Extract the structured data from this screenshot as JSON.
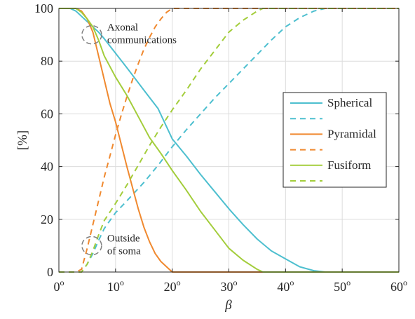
{
  "chart_data": {
    "type": "line",
    "title": "",
    "xlabel": "β",
    "ylabel": "[%]",
    "xlim": [
      0,
      60
    ],
    "ylim": [
      0,
      100
    ],
    "grid": true,
    "legend_position": "right",
    "x_ticks": [
      {
        "value": 0,
        "base": "0",
        "sup": "o"
      },
      {
        "value": 10,
        "base": "10",
        "sup": "o"
      },
      {
        "value": 20,
        "base": "20",
        "sup": "o"
      },
      {
        "value": 30,
        "base": "30",
        "sup": "o"
      },
      {
        "value": 40,
        "base": "40",
        "sup": "o"
      },
      {
        "value": 50,
        "base": "50",
        "sup": "o"
      },
      {
        "value": 60,
        "base": "60",
        "sup": "o"
      }
    ],
    "y_ticks": [
      {
        "value": 0,
        "label": "0"
      },
      {
        "value": 20,
        "label": "20"
      },
      {
        "value": 40,
        "label": "40"
      },
      {
        "value": 60,
        "label": "60"
      },
      {
        "value": 80,
        "label": "80"
      },
      {
        "value": 100,
        "label": "100"
      }
    ],
    "series": [
      {
        "name": "Spherical",
        "color": "#4dbfcf",
        "style": "solid",
        "points": [
          [
            0,
            100
          ],
          [
            2,
            100
          ],
          [
            3,
            99
          ],
          [
            4,
            97
          ],
          [
            5,
            95
          ],
          [
            6,
            93
          ],
          [
            7,
            91
          ],
          [
            8,
            88.5
          ],
          [
            10,
            83
          ],
          [
            12,
            77.5
          ],
          [
            15,
            69
          ],
          [
            17.5,
            62
          ],
          [
            20,
            50.5
          ],
          [
            22.5,
            44
          ],
          [
            25,
            37
          ],
          [
            27.5,
            30.5
          ],
          [
            30,
            24
          ],
          [
            32.5,
            18
          ],
          [
            35,
            12.5
          ],
          [
            37.5,
            8
          ],
          [
            40,
            5
          ],
          [
            42.5,
            2
          ],
          [
            45,
            0.5
          ],
          [
            47,
            0
          ],
          [
            60,
            0
          ]
        ]
      },
      {
        "name": "",
        "color": "#4dbfcf",
        "style": "dashed",
        "points": [
          [
            0,
            0
          ],
          [
            4,
            0
          ],
          [
            5,
            3
          ],
          [
            6,
            7
          ],
          [
            7,
            12
          ],
          [
            8,
            16.5
          ],
          [
            10,
            22.5
          ],
          [
            12,
            27
          ],
          [
            15,
            34
          ],
          [
            17.5,
            40.5
          ],
          [
            20,
            47.5
          ],
          [
            22.5,
            54
          ],
          [
            25,
            60
          ],
          [
            27.5,
            66
          ],
          [
            30,
            71.5
          ],
          [
            32.5,
            77
          ],
          [
            35,
            82.5
          ],
          [
            37.5,
            88
          ],
          [
            40,
            93
          ],
          [
            42.5,
            96.5
          ],
          [
            45,
            99
          ],
          [
            47,
            100
          ],
          [
            60,
            100
          ]
        ]
      },
      {
        "name": "Pyramidal",
        "color": "#f0892f",
        "style": "solid",
        "points": [
          [
            0,
            100
          ],
          [
            3,
            100
          ],
          [
            4,
            99
          ],
          [
            5,
            96
          ],
          [
            6,
            91
          ],
          [
            7,
            82
          ],
          [
            8,
            73
          ],
          [
            9,
            64
          ],
          [
            10,
            57
          ],
          [
            11,
            48.5
          ],
          [
            12,
            40
          ],
          [
            13,
            32
          ],
          [
            14,
            24
          ],
          [
            15,
            17
          ],
          [
            16,
            11.5
          ],
          [
            17,
            7
          ],
          [
            18,
            4
          ],
          [
            19,
            2
          ],
          [
            20,
            0
          ],
          [
            60,
            0
          ]
        ]
      },
      {
        "name": "",
        "color": "#f0892f",
        "style": "dashed",
        "points": [
          [
            0,
            0
          ],
          [
            3,
            0
          ],
          [
            4,
            1
          ],
          [
            5,
            9
          ],
          [
            6,
            18
          ],
          [
            7,
            27
          ],
          [
            8,
            36
          ],
          [
            9,
            44
          ],
          [
            10,
            52
          ],
          [
            11,
            59.5
          ],
          [
            12,
            66.5
          ],
          [
            13,
            73
          ],
          [
            14,
            79
          ],
          [
            15,
            84.5
          ],
          [
            16,
            89
          ],
          [
            17,
            93
          ],
          [
            18,
            96
          ],
          [
            19,
            98.5
          ],
          [
            20,
            100
          ],
          [
            60,
            100
          ]
        ]
      },
      {
        "name": "Fusiform",
        "color": "#a3cd3b",
        "style": "solid",
        "points": [
          [
            0,
            100
          ],
          [
            3,
            100
          ],
          [
            4,
            98.5
          ],
          [
            5,
            96
          ],
          [
            6,
            93
          ],
          [
            7,
            88
          ],
          [
            8,
            82
          ],
          [
            10,
            74
          ],
          [
            12,
            67
          ],
          [
            14,
            59
          ],
          [
            16,
            51
          ],
          [
            18,
            45
          ],
          [
            20,
            38.5
          ],
          [
            22.5,
            31
          ],
          [
            25,
            23
          ],
          [
            27.5,
            16
          ],
          [
            30,
            9
          ],
          [
            32.5,
            4.5
          ],
          [
            35,
            1
          ],
          [
            36,
            0
          ],
          [
            60,
            0
          ]
        ]
      },
      {
        "name": "",
        "color": "#a3cd3b",
        "style": "dashed",
        "points": [
          [
            0,
            0
          ],
          [
            4,
            0
          ],
          [
            5,
            3
          ],
          [
            6,
            8
          ],
          [
            7,
            14
          ],
          [
            8,
            19.5
          ],
          [
            10,
            26
          ],
          [
            12,
            33
          ],
          [
            14,
            40.5
          ],
          [
            16,
            48
          ],
          [
            18,
            55
          ],
          [
            20,
            61.5
          ],
          [
            22.5,
            69
          ],
          [
            25,
            77
          ],
          [
            27.5,
            84
          ],
          [
            30,
            91
          ],
          [
            32.5,
            95.5
          ],
          [
            35,
            99
          ],
          [
            36,
            100
          ],
          [
            60,
            100
          ]
        ]
      }
    ],
    "annotations": [
      {
        "lines": [
          "Axonal",
          "communications"
        ],
        "x": 5.8,
        "y": 90
      },
      {
        "lines": [
          "Outside",
          "of soma"
        ],
        "x": 5.8,
        "y": 10
      }
    ]
  }
}
